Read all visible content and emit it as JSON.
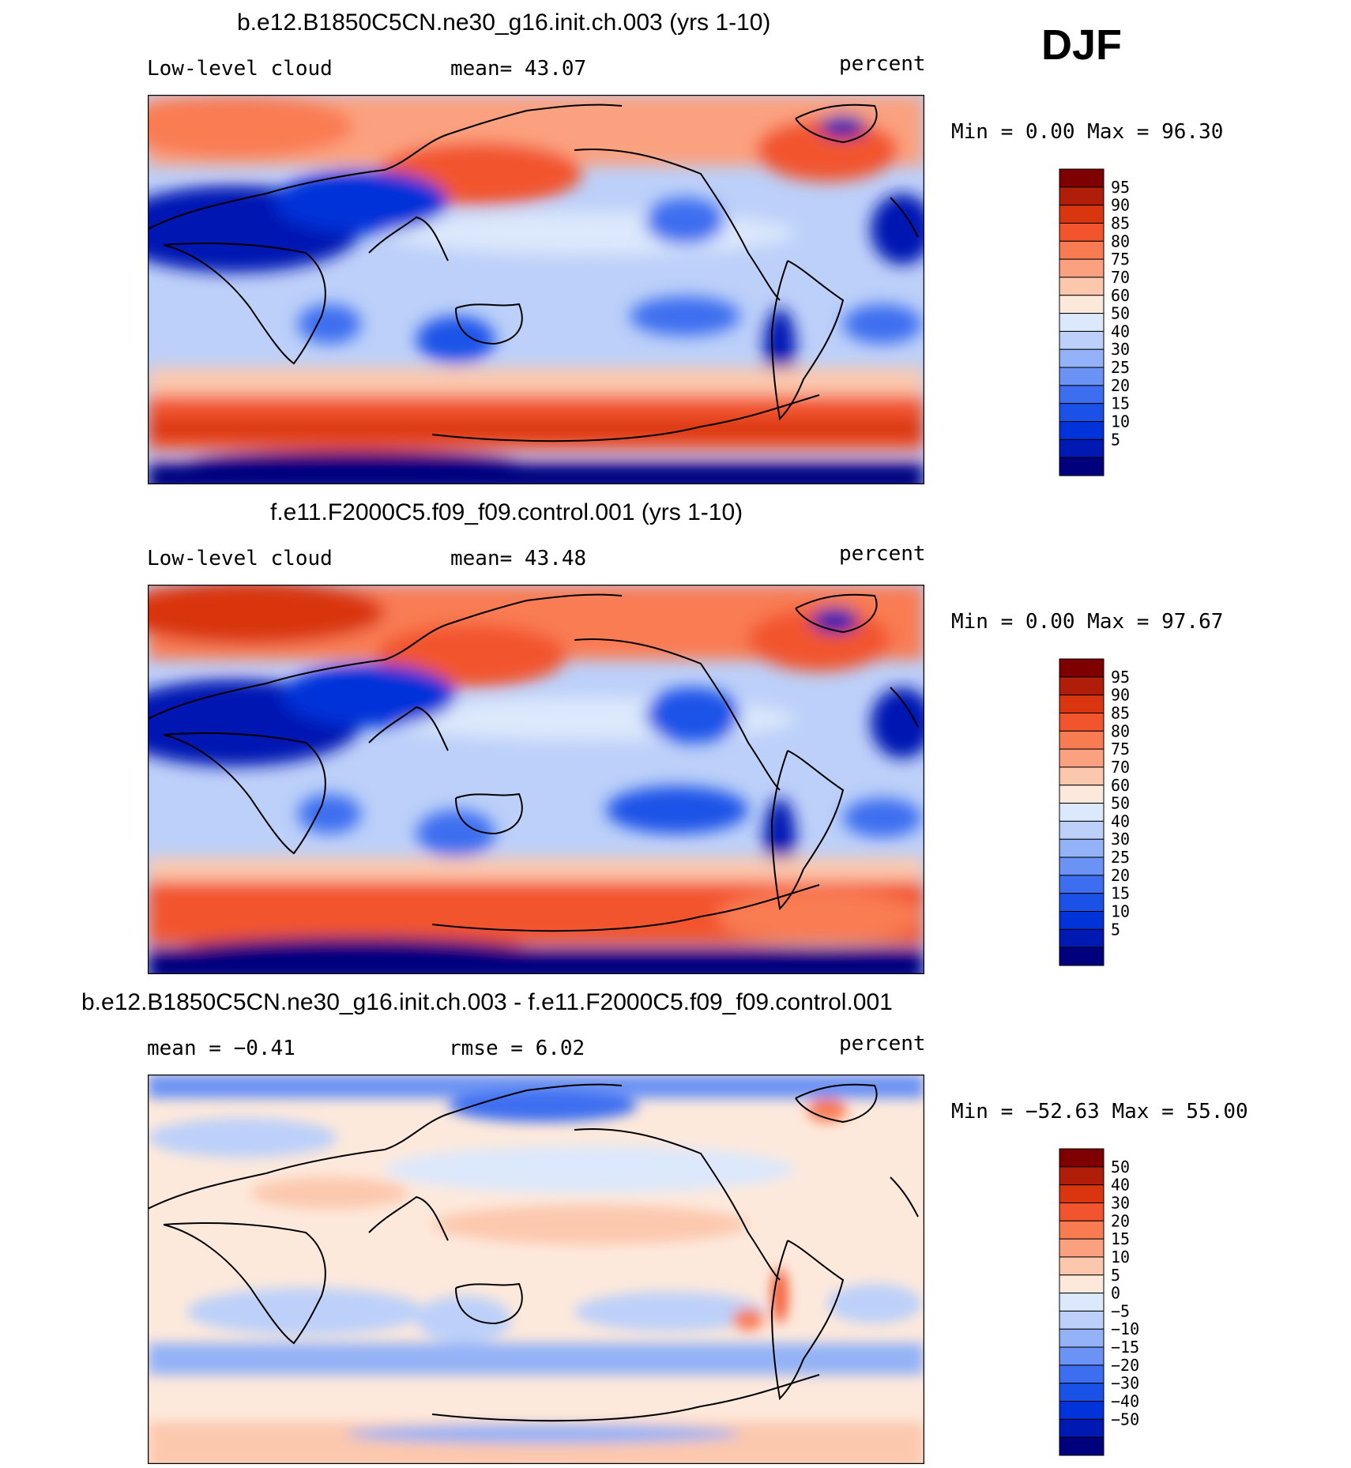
{
  "season": "DJF",
  "colors": {
    "levels_abs": [
      "#00007f",
      "#0019b2",
      "#0033d9",
      "#1a52e8",
      "#3d6ef0",
      "#6a93f5",
      "#93b2f7",
      "#bcd0f9",
      "#dce8fb",
      "#fde9dc",
      "#fcc8ad",
      "#fba17f",
      "#f97b52",
      "#f2542e",
      "#d9360f",
      "#b01e0a",
      "#7f0000"
    ],
    "levels_diff": [
      "#00007f",
      "#0019b2",
      "#0033d9",
      "#1a52e8",
      "#3d6ef0",
      "#6a93f5",
      "#93b2f7",
      "#bcd0f9",
      "#dce8fb",
      "#fde9dc",
      "#fcc8ad",
      "#fba17f",
      "#f97b52",
      "#f2542e",
      "#d9360f",
      "#b01e0a",
      "#7f0000"
    ]
  },
  "chart_data": [
    {
      "type": "heatmap",
      "title": "b.e12.B1850C5CN.ne30_g16.init.ch.003 (yrs 1-10)",
      "left_label": "Low-level cloud",
      "center_label": "mean=   43.07",
      "right_label": "percent",
      "mean": 43.07,
      "minmax_text": "Min =    0.00 Max =   96.30",
      "min": 0.0,
      "max": 96.3,
      "colorbar_labels": [
        "95",
        "90",
        "85",
        "80",
        "75",
        "70",
        "60",
        "50",
        "40",
        "30",
        "25",
        "20",
        "15",
        "10",
        "5"
      ]
    },
    {
      "type": "heatmap",
      "title": "f.e11.F2000C5.f09_f09.control.001 (yrs 1-10)",
      "left_label": "Low-level cloud",
      "center_label": "mean=   43.48",
      "right_label": "percent",
      "mean": 43.48,
      "minmax_text": "Min =    0.00 Max =   97.67",
      "min": 0.0,
      "max": 97.67,
      "colorbar_labels": [
        "95",
        "90",
        "85",
        "80",
        "75",
        "70",
        "60",
        "50",
        "40",
        "30",
        "25",
        "20",
        "15",
        "10",
        "5"
      ]
    },
    {
      "type": "heatmap",
      "title": "b.e12.B1850C5CN.ne30_g16.init.ch.003 - f.e11.F2000C5.f09_f09.control.001",
      "left_label": "mean =  −0.41",
      "center_label": "rmse =    6.02",
      "right_label": "percent",
      "mean": -0.41,
      "rmse": 6.02,
      "minmax_text": "Min = −52.63 Max =   55.00",
      "min": -52.63,
      "max": 55.0,
      "colorbar_labels": [
        "50",
        "40",
        "30",
        "20",
        "15",
        "10",
        "5",
        "0",
        "−5",
        "−10",
        "−15",
        "−20",
        "−30",
        "−40",
        "−50"
      ]
    }
  ]
}
